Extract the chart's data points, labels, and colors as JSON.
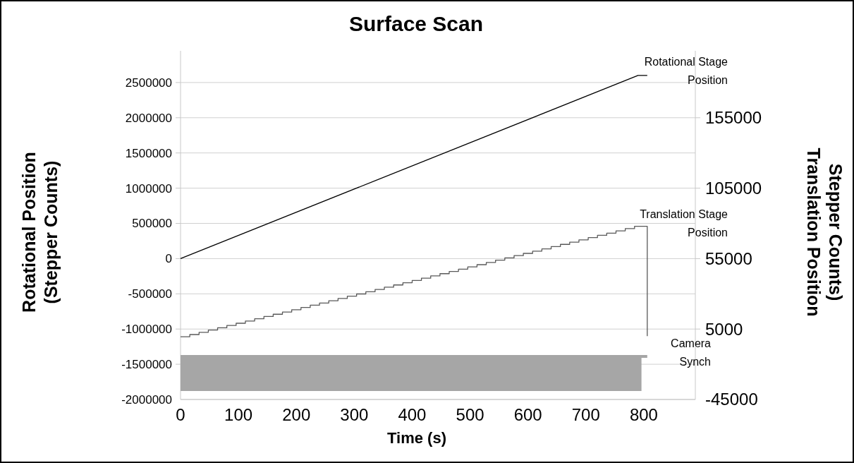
{
  "chart_data": {
    "type": "line",
    "title": "Surface Scan",
    "xlabel": "Time (s)",
    "ylabel": "Rotational Position (Stepper Counts)",
    "y2label": "Translation Position Stepper Counts)",
    "xlim": [
      0,
      889
    ],
    "xticks": [
      0,
      100,
      200,
      300,
      400,
      500,
      600,
      700,
      800
    ],
    "ylim": [
      -2000000,
      2950000
    ],
    "yticks": [
      -2000000,
      -1500000,
      -1000000,
      -500000,
      0,
      500000,
      1000000,
      1500000,
      2000000,
      2500000
    ],
    "y2lim": [
      -45000,
      202500
    ],
    "y2ticks": [
      -45000,
      5000,
      55000,
      105000,
      155000
    ],
    "grid": "y",
    "marker": "none",
    "line_style": "solid",
    "series": [
      {
        "name": "Rotational Stage Position",
        "color": "#000000",
        "x": [
          0,
          790,
          806
        ],
        "values": [
          0,
          2600000,
          2600000
        ]
      },
      {
        "name": "Translation Stage Position",
        "type": "step",
        "axis": "y2",
        "color": "#595959",
        "x": [
          0,
          16,
          32,
          48,
          64,
          80,
          96,
          112,
          128,
          144,
          160,
          176,
          192,
          208,
          224,
          240,
          256,
          272,
          288,
          304,
          320,
          336,
          352,
          368,
          384,
          400,
          416,
          432,
          448,
          464,
          480,
          496,
          512,
          528,
          544,
          560,
          576,
          592,
          608,
          624,
          640,
          656,
          672,
          688,
          704,
          720,
          736,
          752,
          768,
          784,
          795,
          806
        ],
        "values": [
          -500,
          1100,
          2700,
          4300,
          5900,
          7500,
          9100,
          10700,
          12300,
          13900,
          15500,
          17100,
          18700,
          20300,
          21900,
          23500,
          25100,
          26700,
          28300,
          29900,
          31500,
          33100,
          34700,
          36300,
          37900,
          39500,
          41100,
          42700,
          44300,
          45900,
          47500,
          49100,
          50700,
          52300,
          53900,
          55500,
          57100,
          58700,
          60300,
          61900,
          63500,
          65100,
          66700,
          68300,
          69900,
          71500,
          73100,
          74700,
          76300,
          77900,
          77900,
          0
        ]
      },
      {
        "name": "Camera Synch",
        "color": "#a6a6a6",
        "x": [
          0,
          796,
          806
        ],
        "values": [
          -1390000,
          -1390000,
          -1390000
        ],
        "lower": [
          -1880000,
          -1880000,
          null
        ],
        "upper": [
          -1390000,
          -1390000,
          null
        ]
      }
    ]
  }
}
